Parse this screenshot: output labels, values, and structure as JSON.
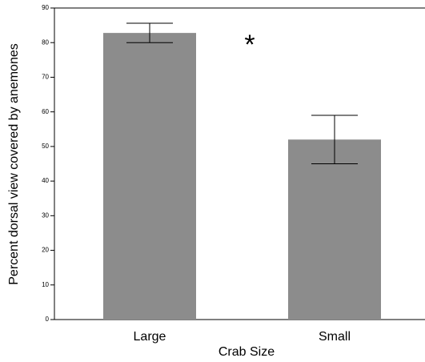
{
  "chart_data": {
    "type": "bar",
    "categories": [
      "Large",
      "Small"
    ],
    "values": [
      82.8,
      52
    ],
    "errors": [
      2.8,
      7
    ],
    "color": "#8c8c8c",
    "x_label": "Crab Size",
    "y_label": "Percent dorsal view covered by anemones",
    "annotation": "*",
    "ylim": [
      0,
      90
    ],
    "yticks": [
      0,
      10,
      20,
      30,
      40,
      50,
      60,
      70,
      80,
      90
    ]
  }
}
